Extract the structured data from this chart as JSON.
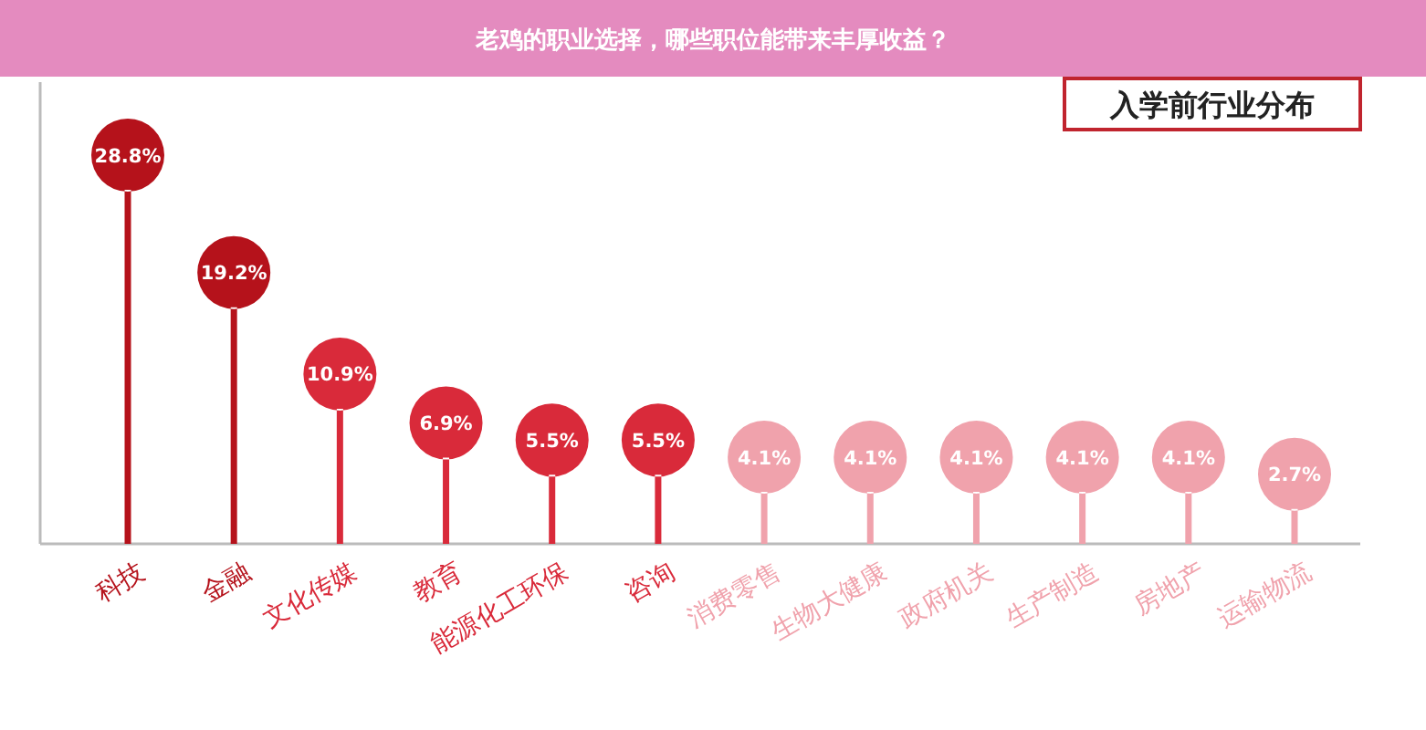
{
  "chart_data": {
    "type": "lollipop",
    "title": "老鸡的职业选择，哪些职位能带来丰厚收益？",
    "subtitle": "入学前行业分布",
    "categories": [
      "科技",
      "金融",
      "文化传媒",
      "教育",
      "能源化工环保",
      "咨询",
      "消费零售",
      "生物大健康",
      "政府机关",
      "生产制造",
      "房地产",
      "运输物流"
    ],
    "values": [
      28.8,
      19.2,
      10.9,
      6.9,
      5.5,
      5.5,
      4.1,
      4.1,
      4.1,
      4.1,
      4.1,
      2.7
    ],
    "value_labels": [
      "28.8%",
      "19.2%",
      "10.9%",
      "6.9%",
      "5.5%",
      "5.5%",
      "4.1%",
      "4.1%",
      "4.1%",
      "4.1%",
      "4.1%",
      "2.7%"
    ],
    "colors": [
      "#b5121b",
      "#b5121b",
      "#d92a3a",
      "#d92a3a",
      "#d92a3a",
      "#d92a3a",
      "#f0a2ac",
      "#f0a2ac",
      "#f0a2ac",
      "#f0a2ac",
      "#f0a2ac",
      "#f0a2ac"
    ]
  }
}
